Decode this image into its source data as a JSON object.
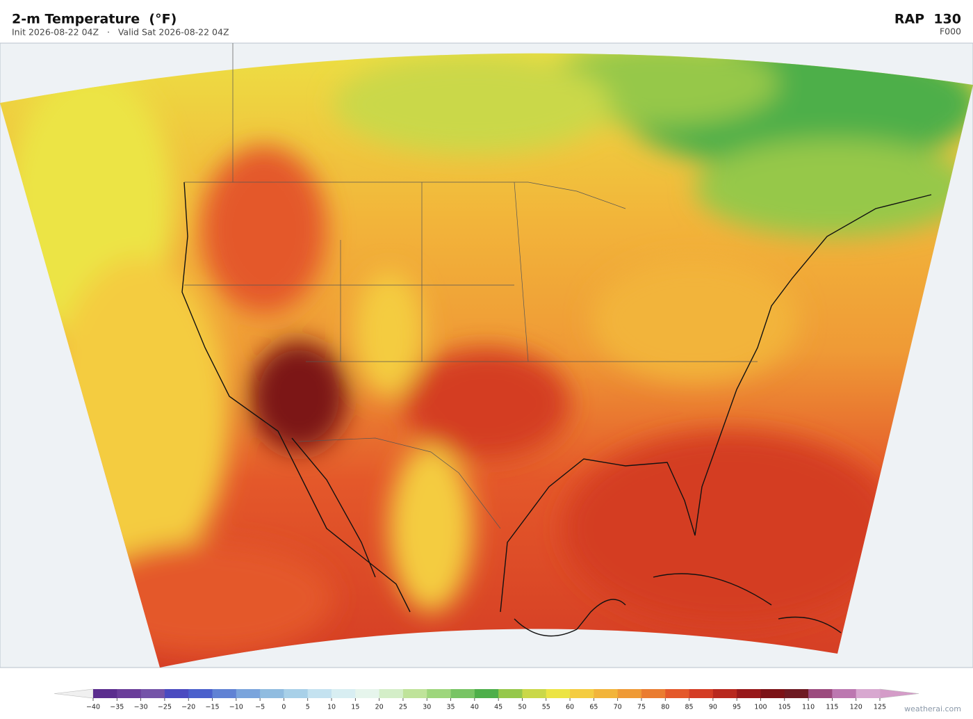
{
  "header": {
    "title": "2-m Temperature  (°F)",
    "subtitle": "Init 2026-08-22 04Z   ·   Valid Sat 2026-08-22 04Z",
    "model": "RAP  130",
    "forecast_hour": "F000"
  },
  "colorbar": {
    "ticks": [
      {
        "value": -40,
        "label": "−40"
      },
      {
        "value": -35,
        "label": "−35"
      },
      {
        "value": -30,
        "label": "−30"
      },
      {
        "value": -25,
        "label": "−25"
      },
      {
        "value": -20,
        "label": "−20"
      },
      {
        "value": -15,
        "label": "−15"
      },
      {
        "value": -10,
        "label": "−10"
      },
      {
        "value": -5,
        "label": "−5"
      },
      0,
      5,
      10,
      15,
      20,
      25,
      30,
      35,
      40,
      45,
      50,
      55,
      60,
      65,
      70,
      75,
      80,
      85,
      90,
      95,
      100,
      105,
      110,
      115,
      120,
      125
    ],
    "colors": [
      "#5b2d8e",
      "#6a3d9a",
      "#7453a8",
      "#4a4ac0",
      "#4a60cc",
      "#6082d4",
      "#7aa4dc",
      "#90bce0",
      "#a8d0e8",
      "#c4e2f0",
      "#d8eef2",
      "#e6f5ec",
      "#d4eec8",
      "#bfe39a",
      "#9ed67c",
      "#78c464",
      "#4eaf4a",
      "#96c84a",
      "#cad848",
      "#ece444",
      "#f4cc40",
      "#f2b43a",
      "#ef9a36",
      "#ea7c30",
      "#e4582a",
      "#d43c24",
      "#b8281e",
      "#98181a",
      "#7c1216",
      "#6e1a22",
      "#9c4a7e",
      "#bc78b0",
      "#d8a8d0"
    ],
    "under_color": "#f0f0f0",
    "over_color": "#d49cc8"
  },
  "credit": "weatherai.com"
}
